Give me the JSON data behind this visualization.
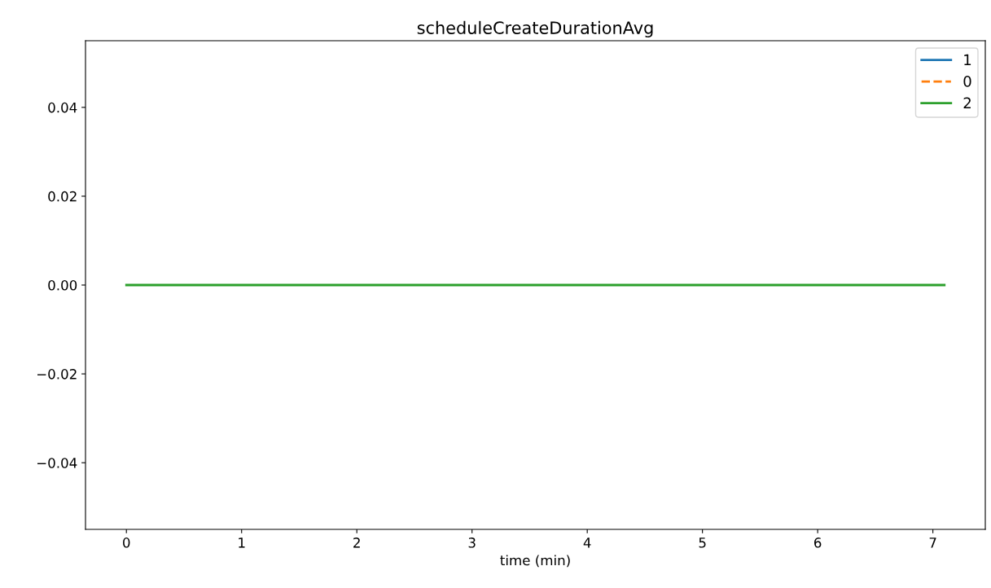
{
  "chart_data": {
    "type": "line",
    "title": "scheduleCreateDurationAvg",
    "xlabel": "time (min)",
    "x": [
      0,
      7.1
    ],
    "series": [
      {
        "name": "1",
        "color": "#1f77b4",
        "line_style": "solid",
        "values": [
          null,
          null
        ]
      },
      {
        "name": "0",
        "color": "#ff7f0e",
        "line_style": "dashed",
        "values": [
          null,
          null
        ]
      },
      {
        "name": "2",
        "color": "#2ca02c",
        "line_style": "solid",
        "values": [
          0,
          0
        ]
      }
    ],
    "xlim": [
      -0.355,
      7.455
    ],
    "ylim": [
      -0.055,
      0.055
    ],
    "xticks": [
      0,
      1,
      2,
      3,
      4,
      5,
      6,
      7
    ],
    "yticks": [
      {
        "value": -0.04,
        "label": "−0.04"
      },
      {
        "value": -0.02,
        "label": "−0.02"
      },
      {
        "value": 0,
        "label": "0.00"
      },
      {
        "value": 0.02,
        "label": "0.02"
      },
      {
        "value": 0.04,
        "label": "0.04"
      }
    ],
    "legend": "top right",
    "grid": false
  }
}
